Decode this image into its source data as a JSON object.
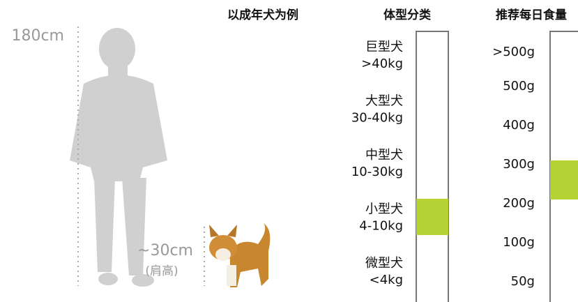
{
  "height_label": "180cm",
  "dog_height": {
    "value": "~30cm",
    "note": "(肩高)"
  },
  "headers": {
    "example": "以成年犬为例",
    "size": "体型分类",
    "food": "推荐每日食量"
  },
  "size_classes": [
    {
      "name": "巨型犬",
      "weight": ">40kg"
    },
    {
      "name": "大型犬",
      "weight": "30-40kg"
    },
    {
      "name": "中型犬",
      "weight": "10-30kg"
    },
    {
      "name": "小型犬",
      "weight": "4-10kg"
    },
    {
      "name": "微型犬",
      "weight": "<4kg"
    }
  ],
  "food_levels": [
    ">500g",
    "500g",
    "400g",
    "300g",
    "200g",
    "100g",
    "50g"
  ]
}
